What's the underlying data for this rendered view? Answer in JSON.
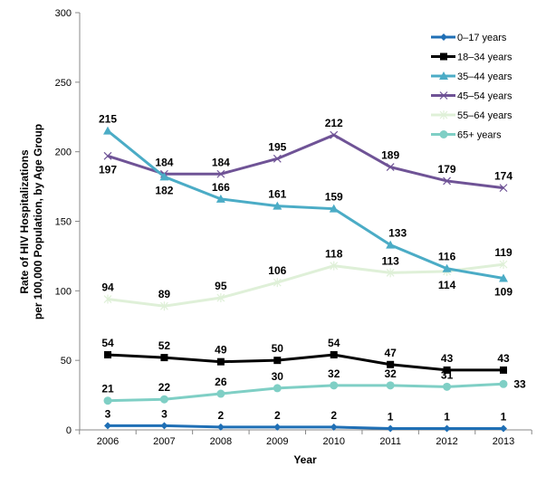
{
  "chart_data": {
    "type": "line",
    "title": "",
    "xlabel": "Year",
    "ylabel_line1": "Rate of HIV Hospitalizations",
    "ylabel_line2": "per 100,000  Population, by Age Group",
    "ylim": [
      0,
      300
    ],
    "yticks": [
      0,
      50,
      100,
      150,
      200,
      250,
      300
    ],
    "categories": [
      "2006",
      "2007",
      "2008",
      "2009",
      "2010",
      "2011",
      "2012",
      "2013"
    ],
    "grid": false,
    "legend": "top-right",
    "series": [
      {
        "name": "0–17 years",
        "color": "#1f6fb5",
        "marker": "diamond",
        "values": [
          3,
          3,
          2,
          2,
          2,
          1,
          1,
          1
        ]
      },
      {
        "name": "18–34 years",
        "color": "#000000",
        "marker": "square",
        "values": [
          54,
          52,
          49,
          50,
          54,
          47,
          43,
          43
        ]
      },
      {
        "name": "35–44 years",
        "color": "#4bacc6",
        "marker": "triangle",
        "values": [
          215,
          182,
          166,
          161,
          159,
          133,
          116,
          109
        ]
      },
      {
        "name": "45–54 years",
        "color": "#6f5396",
        "marker": "x",
        "values": [
          197,
          184,
          184,
          195,
          212,
          189,
          179,
          174
        ]
      },
      {
        "name": "55–64 years",
        "color": "#dff0d8",
        "marker": "star",
        "values": [
          94,
          89,
          95,
          106,
          118,
          113,
          114,
          119
        ]
      },
      {
        "name": "65+ years",
        "color": "#7fcfc5",
        "marker": "circle",
        "values": [
          21,
          22,
          26,
          30,
          32,
          32,
          31,
          33
        ]
      }
    ]
  }
}
